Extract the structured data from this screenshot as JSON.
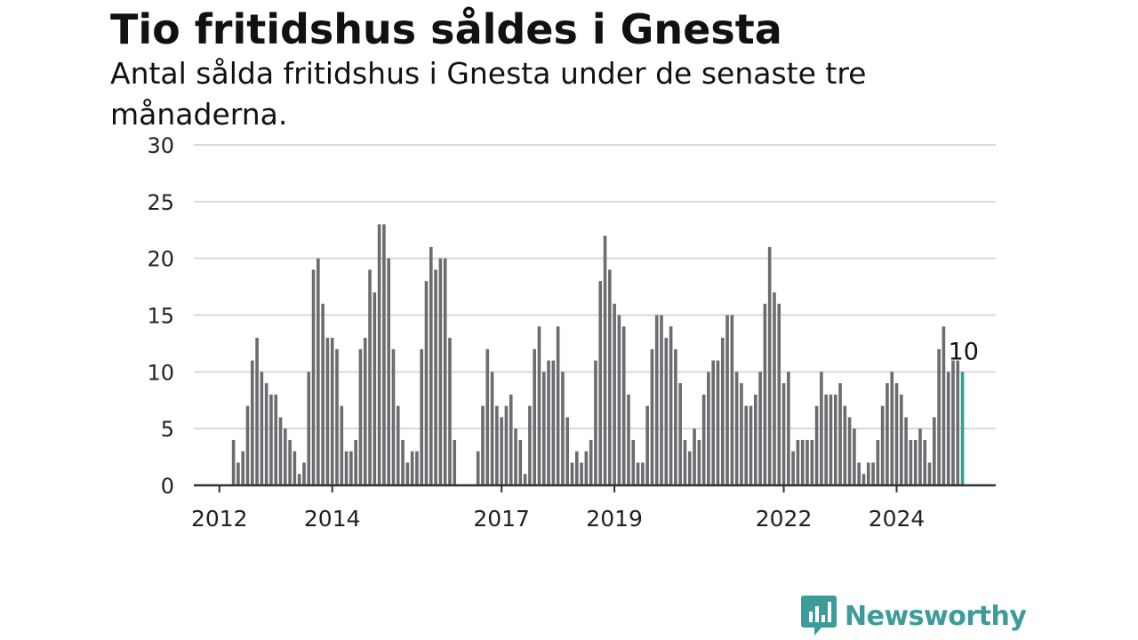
{
  "header": {
    "title": "Tio fritidshus såldes i Gnesta",
    "subtitle": "Antal sålda fritidshus i Gnesta under de senaste tre månaderna."
  },
  "brand": {
    "name": "Newsworthy",
    "color": "#3d9b9a",
    "icon": "newsworthy-logo-icon"
  },
  "chart_data": {
    "type": "bar",
    "title": "",
    "xlabel": "",
    "ylabel": "",
    "ylim": [
      0,
      30
    ],
    "yticks": [
      0,
      5,
      10,
      15,
      20,
      25,
      30
    ],
    "grid": true,
    "legend": "none",
    "bar_color": "#6b6b70",
    "highlight_color": "#2aa198",
    "start": "2011-08",
    "xtick_labels": [
      {
        "label": "2012",
        "month": "2012-01"
      },
      {
        "label": "2014",
        "month": "2014-01"
      },
      {
        "label": "2017",
        "month": "2017-01"
      },
      {
        "label": "2019",
        "month": "2019-01"
      },
      {
        "label": "2022",
        "month": "2022-01"
      },
      {
        "label": "2024",
        "month": "2024-01"
      }
    ],
    "highlight_label": "10",
    "values": [
      null,
      null,
      null,
      null,
      null,
      null,
      null,
      null,
      4,
      2,
      3,
      7,
      11,
      13,
      10,
      9,
      8,
      8,
      6,
      5,
      4,
      3,
      1,
      2,
      10,
      19,
      20,
      16,
      13,
      13,
      12,
      7,
      3,
      3,
      4,
      12,
      13,
      19,
      17,
      23,
      23,
      20,
      12,
      7,
      4,
      2,
      3,
      3,
      12,
      18,
      21,
      19,
      20,
      20,
      13,
      4,
      null,
      null,
      null,
      null,
      3,
      7,
      12,
      10,
      7,
      6,
      7,
      8,
      5,
      4,
      1,
      7,
      12,
      14,
      10,
      11,
      11,
      14,
      10,
      6,
      2,
      3,
      2,
      3,
      4,
      11,
      18,
      22,
      19,
      16,
      15,
      14,
      8,
      4,
      2,
      2,
      7,
      12,
      15,
      15,
      13,
      14,
      12,
      9,
      4,
      3,
      5,
      4,
      8,
      10,
      11,
      11,
      13,
      15,
      15,
      10,
      9,
      7,
      7,
      8,
      10,
      16,
      21,
      17,
      16,
      9,
      10,
      3,
      4,
      4,
      4,
      4,
      7,
      10,
      8,
      8,
      8,
      9,
      7,
      6,
      5,
      2,
      1,
      2,
      2,
      4,
      7,
      9,
      10,
      9,
      8,
      6,
      4,
      4,
      5,
      4,
      2,
      6,
      12,
      14,
      10,
      11,
      11,
      10
    ]
  }
}
